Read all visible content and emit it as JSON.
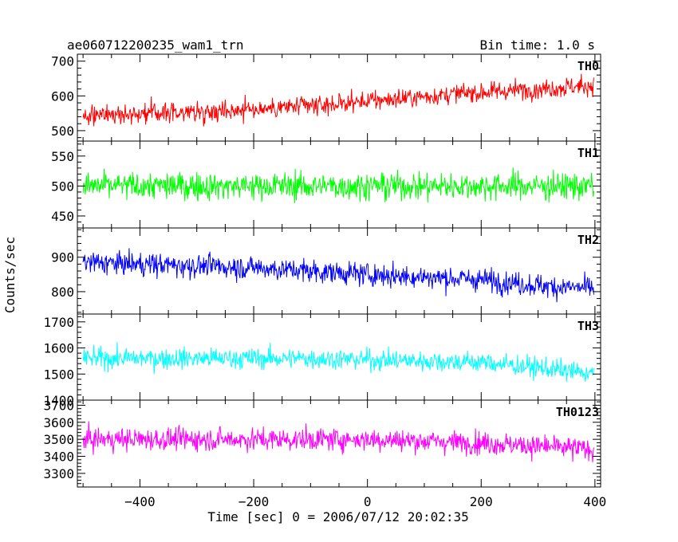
{
  "header": {
    "title": "ae060712200235_wam1_trn",
    "bin_time": "Bin time: 1.0 s"
  },
  "chart_data": {
    "type": "line",
    "xlabel": "Time [sec] 0 = 2006/07/12 20:02:35",
    "ylabel": "Counts/sec",
    "xlim": [
      -510,
      410
    ],
    "x_tick_labels": [
      "−400",
      "−200",
      "0",
      "200",
      "400"
    ],
    "x_ticks": [
      -400,
      -200,
      0,
      200,
      400
    ],
    "x_range": [
      -500,
      398
    ],
    "bin_time_s": 1.0,
    "panels": [
      {
        "name": "TH0",
        "color": "#ff0000",
        "ylim": [
          470,
          720
        ],
        "yticks": [
          500,
          600,
          700
        ],
        "y_tick_labels": [
          "500",
          "600",
          "700"
        ],
        "trend": [
          [
            -500,
            545
          ],
          [
            -300,
            555
          ],
          [
            -100,
            570
          ],
          [
            0,
            585
          ],
          [
            150,
            605
          ],
          [
            300,
            620
          ],
          [
            398,
            630
          ]
        ],
        "spread": 32
      },
      {
        "name": "TH1",
        "color": "#00ff00",
        "ylim": [
          430,
          575
        ],
        "yticks": [
          450,
          500,
          550
        ],
        "y_tick_labels": [
          "450",
          "500",
          "550"
        ],
        "trend": [
          [
            -500,
            500
          ],
          [
            398,
            500
          ]
        ],
        "spread": 26
      },
      {
        "name": "TH2",
        "color": "#0000ff",
        "ylim": [
          735,
          985
        ],
        "yticks": [
          800,
          900
        ],
        "y_tick_labels": [
          "800",
          "900"
        ],
        "trend": [
          [
            -500,
            885
          ],
          [
            -200,
            870
          ],
          [
            0,
            850
          ],
          [
            200,
            835
          ],
          [
            320,
            815
          ],
          [
            398,
            810
          ]
        ],
        "spread": 38
      },
      {
        "name": "TH3",
        "color": "#00ffff",
        "ylim": [
          1400,
          1730
        ],
        "yticks": [
          1400,
          1500,
          1600,
          1700
        ],
        "y_tick_labels": [
          "1400",
          "1500",
          "1600",
          "1700"
        ],
        "trend": [
          [
            -500,
            1560
          ],
          [
            -100,
            1560
          ],
          [
            200,
            1545
          ],
          [
            320,
            1520
          ],
          [
            398,
            1500
          ]
        ],
        "spread": 45
      },
      {
        "name": "TH0123",
        "color": "#ff00ff",
        "ylim": [
          3220,
          3730
        ],
        "yticks": [
          3300,
          3400,
          3500,
          3600,
          3700
        ],
        "y_tick_labels": [
          "3300",
          "3400",
          "3500",
          "3600",
          "3700"
        ],
        "trend": [
          [
            -500,
            3500
          ],
          [
            0,
            3500
          ],
          [
            200,
            3480
          ],
          [
            398,
            3440
          ]
        ],
        "spread": 75
      }
    ]
  }
}
